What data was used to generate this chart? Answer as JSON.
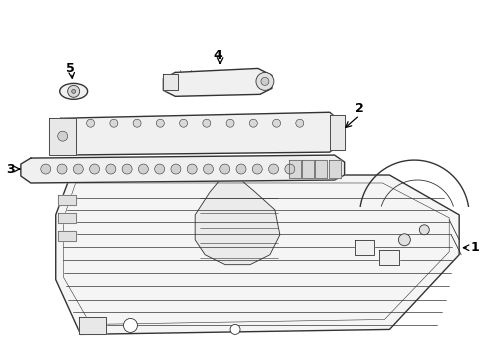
{
  "bg_color": "#ffffff",
  "line_color": "#333333",
  "fig_width": 4.89,
  "fig_height": 3.6,
  "dpi": 100,
  "label_fontsize": 9,
  "lw_main": 1.0,
  "lw_detail": 0.6,
  "lw_thin": 0.4
}
